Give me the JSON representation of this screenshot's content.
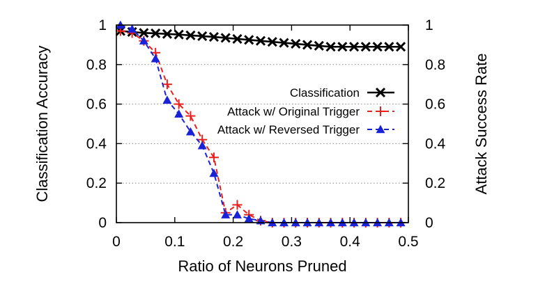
{
  "chart_data": {
    "type": "line",
    "xlabel": "Ratio of Neurons Pruned",
    "ylabel": "Classification Accuracy",
    "y2label": "Attack Success Rate",
    "xlim": [
      0,
      0.5
    ],
    "ylim": [
      0,
      1
    ],
    "xticks": [
      "0",
      "0.1",
      "0.2",
      "0.3",
      "0.4",
      "0.5"
    ],
    "yticks": [
      "0",
      "0.2",
      "0.4",
      "0.6",
      "0.8",
      "1"
    ],
    "grid": "horizontal dotted",
    "legend_position": "right",
    "x": [
      0.007,
      0.027,
      0.047,
      0.067,
      0.087,
      0.107,
      0.127,
      0.147,
      0.167,
      0.187,
      0.207,
      0.227,
      0.247,
      0.267,
      0.287,
      0.307,
      0.327,
      0.347,
      0.367,
      0.387,
      0.407,
      0.427,
      0.447,
      0.467,
      0.487
    ],
    "series": [
      {
        "name": "Classification",
        "color": "#000000",
        "marker": "cross",
        "dash": "solid",
        "values": [
          0.97,
          0.965,
          0.96,
          0.958,
          0.955,
          0.952,
          0.948,
          0.944,
          0.94,
          0.935,
          0.93,
          0.925,
          0.92,
          0.915,
          0.91,
          0.905,
          0.9,
          0.895,
          0.89,
          0.89,
          0.89,
          0.89,
          0.89,
          0.89,
          0.89
        ]
      },
      {
        "name": "Attack w/ Original Trigger",
        "color": "#e8201c",
        "marker": "plus",
        "dash": "dashed",
        "values": [
          0.97,
          0.96,
          0.92,
          0.86,
          0.7,
          0.6,
          0.54,
          0.42,
          0.33,
          0.05,
          0.09,
          0.04,
          0.01,
          0,
          0,
          0,
          0,
          0,
          0,
          0,
          0,
          0,
          0,
          0,
          0
        ]
      },
      {
        "name": "Attack w/ Reversed Trigger",
        "color": "#1a22d8",
        "marker": "triangle",
        "dash": "dashed",
        "values": [
          1.0,
          0.98,
          0.92,
          0.83,
          0.62,
          0.55,
          0.46,
          0.39,
          0.25,
          0.04,
          0.04,
          0.02,
          0.01,
          0,
          0,
          0,
          0,
          0,
          0,
          0,
          0,
          0,
          0,
          0,
          0
        ]
      }
    ]
  }
}
